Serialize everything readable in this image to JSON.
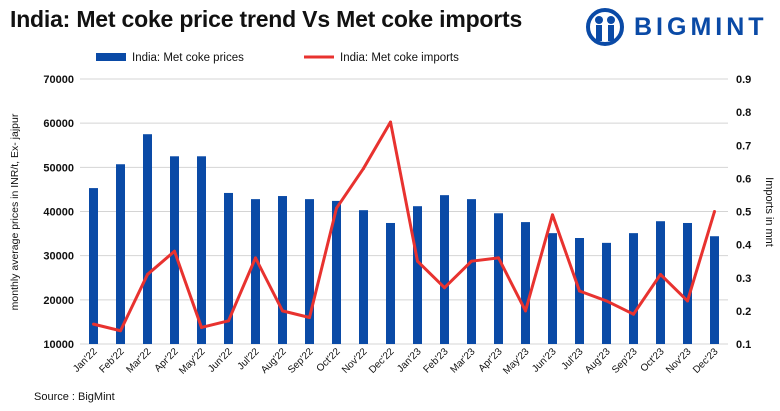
{
  "title": "India: Met coke price trend Vs Met coke imports",
  "logo": {
    "text": "BIGMINT",
    "color": "#0a4aa6"
  },
  "source": "Source : BigMint",
  "chart_data": {
    "type": "bar+line",
    "title": "India: Met coke price trend Vs Met coke imports",
    "categories": [
      "Jan'22",
      "Feb'22",
      "Mar'22",
      "Apr'22",
      "May'22",
      "Jun'22",
      "Jul'22",
      "Aug'22",
      "Sep'22",
      "Oct'22",
      "Nov'22",
      "Dec'22",
      "Jan'23",
      "Feb'23",
      "Mar'23",
      "Apr'23",
      "May'23",
      "Jun'23",
      "Jul'23",
      "Aug'23",
      "Sep'23",
      "Oct'23",
      "Nov'23",
      "Dec'23"
    ],
    "series": [
      {
        "name": "India: Met coke prices",
        "type": "bar",
        "axis": "left",
        "color": "#0a4aa6",
        "values": [
          45300,
          50700,
          57500,
          52500,
          52500,
          44200,
          42800,
          43500,
          42800,
          42400,
          40300,
          37400,
          41200,
          43700,
          42800,
          39600,
          37600,
          35100,
          34000,
          32900,
          35100,
          37800,
          37400,
          34400
        ]
      },
      {
        "name": "India: Met coke imports",
        "type": "line",
        "axis": "right",
        "color": "#e8322f",
        "values": [
          0.16,
          0.14,
          0.31,
          0.38,
          0.15,
          0.17,
          0.36,
          0.2,
          0.18,
          0.51,
          0.63,
          0.77,
          0.35,
          0.27,
          0.35,
          0.36,
          0.2,
          0.49,
          0.26,
          0.23,
          0.19,
          0.31,
          0.23,
          0.5
        ]
      }
    ],
    "ylabel": "monthly average prices in INR/t, Ex- jajpur",
    "y2label": "Imports in mnt",
    "ylim": [
      10000,
      70000
    ],
    "yticks": [
      "10000",
      "20000",
      "30000",
      "40000",
      "50000",
      "60000",
      "70000"
    ],
    "y2lim": [
      0.1,
      0.9
    ],
    "y2ticks": [
      "0.1",
      "0.2",
      "0.3",
      "0.4",
      "0.5",
      "0.6",
      "0.7",
      "0.8",
      "0.9"
    ],
    "grid": true,
    "legend": "top"
  }
}
